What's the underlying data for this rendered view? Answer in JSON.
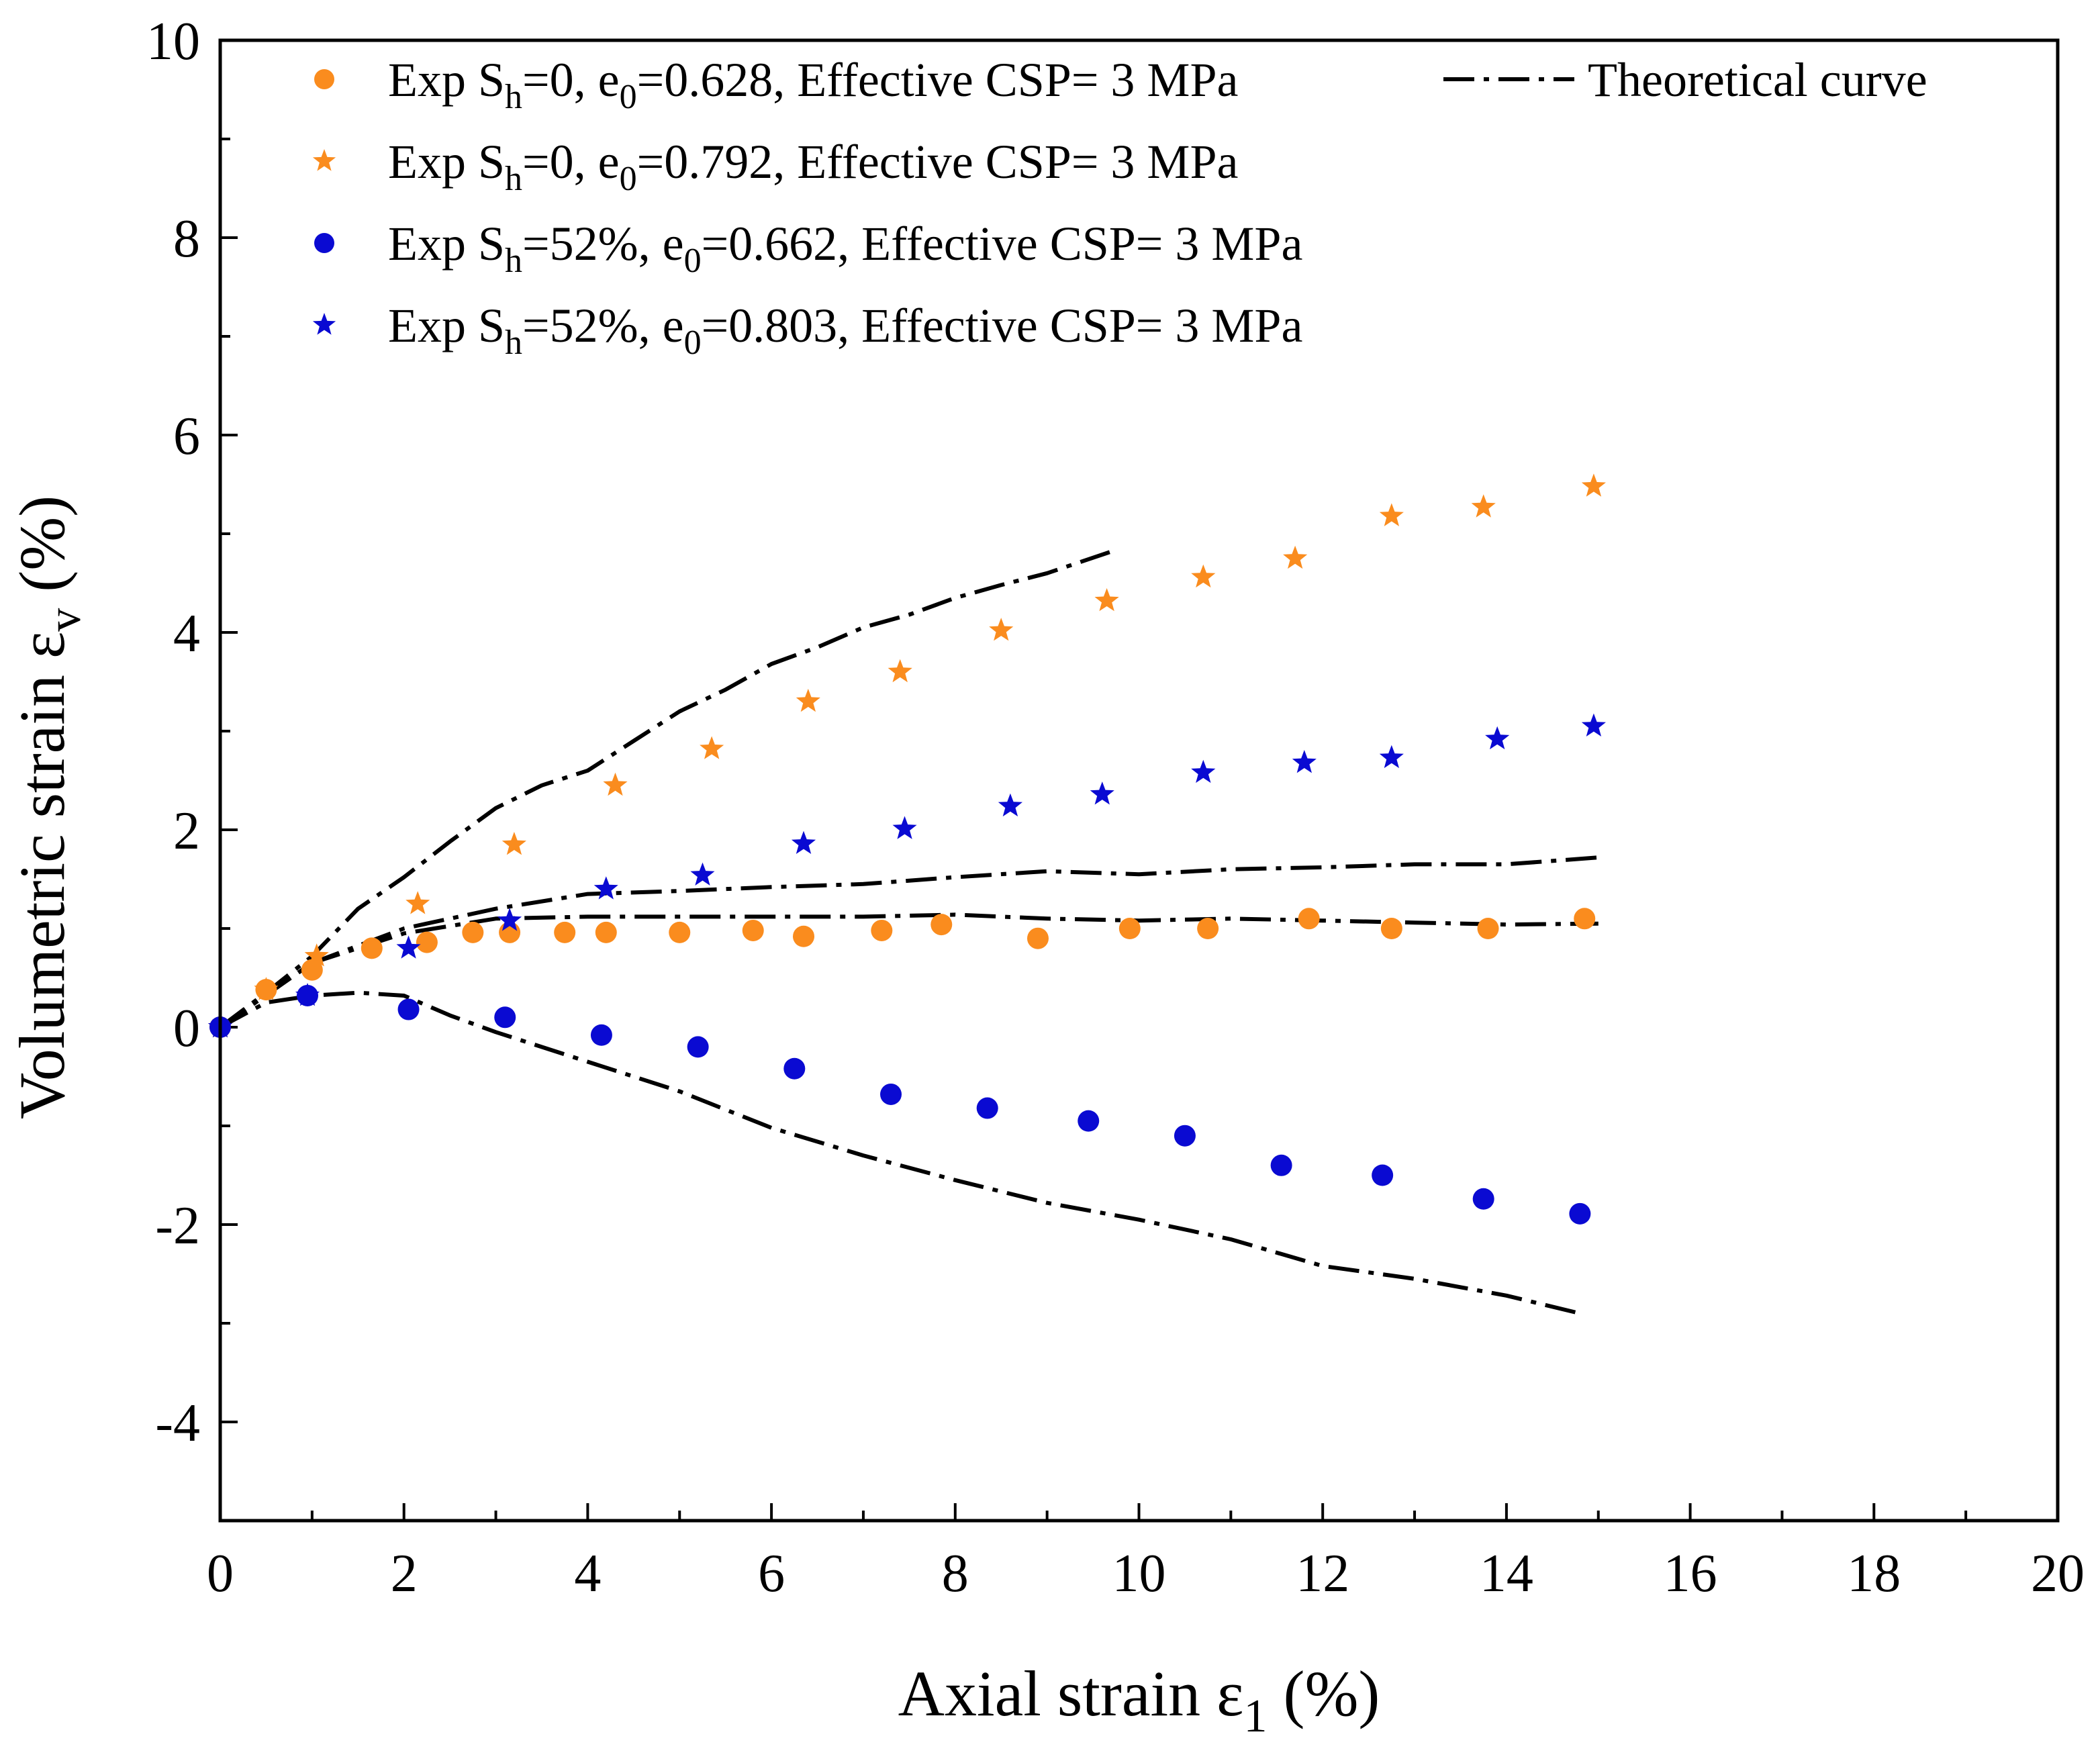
{
  "chart_data": {
    "type": "scatter",
    "title": "",
    "xlabel": {
      "main": "Axial strain ε",
      "sub": "1",
      "unit": " (%)"
    },
    "ylabel": {
      "main": "Volumetric strain ε",
      "sub": "v",
      "unit": " (%)"
    },
    "xlim": [
      0,
      20
    ],
    "ylim": [
      -5,
      10
    ],
    "xticks": [
      0,
      2,
      4,
      6,
      8,
      10,
      12,
      14,
      16,
      18,
      20
    ],
    "yticks": [
      -4,
      -2,
      0,
      2,
      4,
      6,
      8,
      10
    ],
    "legend_position": "top",
    "colors": {
      "orange": "#fa8c1e",
      "blue": "#0a0ad2",
      "theory": "#000000"
    },
    "series": [
      {
        "name": "Exp Sh=0, e0=0.628, Effective CSP= 3 MPa",
        "label_parts": [
          "Exp S",
          "h",
          "=0, e",
          "0",
          "=0.628, Effective CSP= 3 MPa"
        ],
        "marker": "circle",
        "color": "#fa8c1e",
        "x": [
          0,
          0.5,
          1.0,
          1.65,
          2.25,
          2.75,
          3.15,
          3.75,
          4.2,
          5.0,
          5.8,
          6.35,
          7.2,
          7.85,
          8.9,
          9.9,
          10.75,
          11.85,
          12.75,
          13.8,
          14.85
        ],
        "y": [
          0,
          0.38,
          0.58,
          0.8,
          0.86,
          0.96,
          0.96,
          0.96,
          0.96,
          0.96,
          0.98,
          0.92,
          0.98,
          1.04,
          0.9,
          1.0,
          1.0,
          1.1,
          1.0,
          1.0,
          1.1
        ]
      },
      {
        "name": "Exp Sh=0, e0=0.792, Effective CSP= 3 MPa",
        "label_parts": [
          "Exp S",
          "h",
          "=0, e",
          "0",
          "=0.792, Effective CSP= 3 MPa"
        ],
        "marker": "star",
        "color": "#fa8c1e",
        "x": [
          0,
          0.5,
          1.05,
          2.15,
          3.2,
          4.3,
          5.35,
          6.4,
          7.4,
          8.5,
          9.65,
          10.7,
          11.7,
          12.75,
          13.75,
          14.95
        ],
        "y": [
          0,
          0.38,
          0.72,
          1.25,
          1.85,
          2.45,
          2.82,
          3.3,
          3.6,
          4.02,
          4.32,
          4.56,
          4.75,
          5.18,
          5.27,
          5.48
        ]
      },
      {
        "name": "Exp Sh=52%, e0=0.662, Effective CSP= 3 MPa",
        "label_parts": [
          "Exp S",
          "h",
          "=52%, e",
          "0",
          "=0.662, Effective CSP= 3 MPa"
        ],
        "marker": "circle",
        "color": "#0a0ad2",
        "x": [
          0,
          0.95,
          2.05,
          3.1,
          4.15,
          5.2,
          6.25,
          7.3,
          8.35,
          9.45,
          10.5,
          11.55,
          12.65,
          13.75,
          14.8
        ],
        "y": [
          0,
          0.32,
          0.18,
          0.1,
          -0.08,
          -0.2,
          -0.42,
          -0.68,
          -0.82,
          -0.95,
          -1.1,
          -1.4,
          -1.5,
          -1.74,
          -1.89
        ]
      },
      {
        "name": "Exp Sh=52%, e0=0.803, Effective CSP= 3 MPa",
        "label_parts": [
          "Exp S",
          "h",
          "=52%, e",
          "0",
          "=0.803, Effective CSP= 3 MPa"
        ],
        "marker": "star",
        "color": "#0a0ad2",
        "x": [
          0,
          0.95,
          2.05,
          3.15,
          4.2,
          5.25,
          6.35,
          7.45,
          8.6,
          9.6,
          10.7,
          11.8,
          12.75,
          13.9,
          14.95
        ],
        "y": [
          0,
          0.32,
          0.8,
          1.08,
          1.4,
          1.54,
          1.86,
          2.01,
          2.24,
          2.36,
          2.58,
          2.68,
          2.73,
          2.92,
          3.05
        ]
      }
    ],
    "theory": {
      "name": "Theoretical curve",
      "color": "#000000",
      "curves": [
        {
          "x": [
            0,
            0.5,
            1.0,
            1.5,
            2.0,
            2.5,
            3.0,
            3.5,
            4.0,
            4.5,
            5.0,
            5.5,
            6.0,
            6.5,
            7.0,
            7.5,
            8.0,
            8.5,
            9.0,
            9.7
          ],
          "y": [
            0,
            0.35,
            0.72,
            1.2,
            1.52,
            1.88,
            2.22,
            2.45,
            2.6,
            2.9,
            3.2,
            3.42,
            3.68,
            3.85,
            4.05,
            4.18,
            4.35,
            4.48,
            4.6,
            4.82
          ]
        },
        {
          "x": [
            0,
            1.0,
            2.0,
            3.0,
            4.0,
            5.0,
            6.0,
            7.0,
            8.0,
            9.0,
            10.0,
            11.0,
            12.0,
            13.0,
            14.0,
            15.0
          ],
          "y": [
            0,
            0.65,
            1.0,
            1.2,
            1.35,
            1.38,
            1.42,
            1.45,
            1.52,
            1.58,
            1.55,
            1.6,
            1.62,
            1.65,
            1.65,
            1.72
          ]
        },
        {
          "x": [
            0,
            1.0,
            2.0,
            3.0,
            4.0,
            5.0,
            6.0,
            7.0,
            8.0,
            9.0,
            10.0,
            11.0,
            12.0,
            13.0,
            14.0,
            15.0
          ],
          "y": [
            0,
            0.65,
            0.95,
            1.1,
            1.12,
            1.12,
            1.12,
            1.12,
            1.14,
            1.1,
            1.08,
            1.1,
            1.08,
            1.06,
            1.04,
            1.05
          ]
        },
        {
          "x": [
            0,
            0.5,
            1.0,
            1.5,
            2.0,
            2.5,
            3.0,
            4.0,
            5.0,
            6.0,
            7.0,
            8.0,
            9.0,
            10.0,
            11.0,
            12.0,
            13.0,
            14.0,
            14.8
          ],
          "y": [
            0,
            0.25,
            0.32,
            0.35,
            0.32,
            0.12,
            -0.05,
            -0.35,
            -0.65,
            -1.02,
            -1.3,
            -1.55,
            -1.78,
            -1.95,
            -2.15,
            -2.42,
            -2.55,
            -2.72,
            -2.9
          ]
        }
      ]
    }
  }
}
